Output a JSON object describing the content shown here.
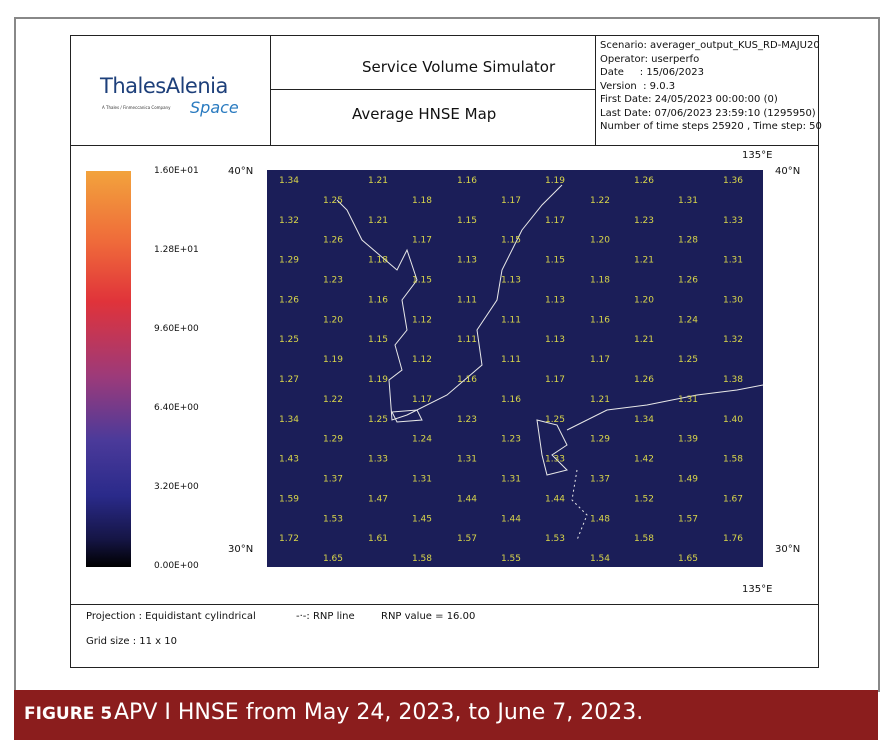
{
  "header": {
    "logo": {
      "name": "ThalesAlenia",
      "sub": "Space",
      "tagline": "A Thales / Finmeccanica Company"
    },
    "title": "Service Volume Simulator",
    "subtitle": "Average HNSE Map",
    "info": [
      "Scenario: averager_output_KUS_RD-MAJU20",
      "Operator: userperfo",
      "Date     : 15/06/2023",
      "Version  : 9.0.3",
      "First Date: 24/05/2023 00:00:00 (0)",
      "Last Date: 07/06/2023 23:59:10 (1295950)",
      "Number of time steps 25920 , Time step: 50"
    ]
  },
  "colorbar": {
    "labels": [
      "1.60E+01",
      "1.28E+01",
      "9.60E+00",
      "6.40E+00",
      "3.20E+00",
      "0.00E+00"
    ]
  },
  "map": {
    "top_lon": "135°E",
    "bottom_lon": "135°E",
    "top_left_lat": "40°N",
    "top_right_lat": "40°N",
    "bottom_left_lat": "30°N",
    "bottom_right_lat": "30°N",
    "values": [
      [
        "1.34",
        "1.21",
        "1.16",
        "1.19",
        "1.26",
        "1.36"
      ],
      [
        "1.25",
        "1.18",
        "1.17",
        "1.22",
        "1.31"
      ],
      [
        "1.32",
        "1.21",
        "1.15",
        "1.17",
        "1.23",
        "1.33"
      ],
      [
        "1.26",
        "1.17",
        "1.15",
        "1.20",
        "1.28"
      ],
      [
        "1.29",
        "1.18",
        "1.13",
        "1.15",
        "1.21",
        "1.31"
      ],
      [
        "1.23",
        "1.15",
        "1.13",
        "1.18",
        "1.26"
      ],
      [
        "1.26",
        "1.16",
        "1.11",
        "1.13",
        "1.20",
        "1.30"
      ],
      [
        "1.20",
        "1.12",
        "1.11",
        "1.16",
        "1.24"
      ],
      [
        "1.25",
        "1.15",
        "1.11",
        "1.13",
        "1.21",
        "1.32"
      ],
      [
        "1.19",
        "1.12",
        "1.11",
        "1.17",
        "1.25"
      ],
      [
        "1.27",
        "1.19",
        "1.16",
        "1.17",
        "1.26",
        "1.38"
      ],
      [
        "1.22",
        "1.17",
        "1.16",
        "1.21",
        "1.31"
      ],
      [
        "1.34",
        "1.25",
        "1.23",
        "1.25",
        "1.34",
        "1.40"
      ],
      [
        "1.29",
        "1.24",
        "1.23",
        "1.29",
        "1.39"
      ],
      [
        "1.43",
        "1.33",
        "1.31",
        "1.33",
        "1.42",
        "1.58"
      ],
      [
        "1.37",
        "1.31",
        "1.31",
        "1.37",
        "1.49"
      ],
      [
        "1.59",
        "1.47",
        "1.44",
        "1.44",
        "1.52",
        "1.67"
      ],
      [
        "1.53",
        "1.45",
        "1.44",
        "1.48",
        "1.57"
      ],
      [
        "1.72",
        "1.61",
        "1.57",
        "1.53",
        "1.58",
        "1.76"
      ],
      [
        "1.65",
        "1.58",
        "1.55",
        "1.54",
        "1.65"
      ]
    ]
  },
  "footer": {
    "projection": "Projection : Equidistant cylindrical",
    "rnp_line": "-·-: RNP line",
    "rnp_value": "RNP value = 16.00",
    "grid_size": "Grid size : 11 x 10"
  },
  "caption": {
    "label": "FIGURE 5",
    "text": "APV I HNSE from May 24, 2023, to June 7, 2023."
  }
}
